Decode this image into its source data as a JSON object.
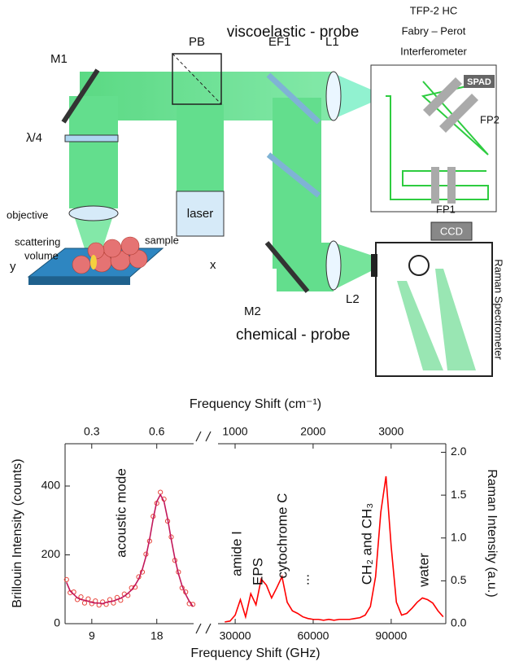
{
  "diagram": {
    "viscoelastic_probe": "viscoelastic - probe",
    "tfp_1": "TFP-2 HC",
    "tfp_2": "Fabry – Perot",
    "tfp_3": "Interferometer",
    "m1": "M1",
    "pb": "PB",
    "ef1": "EF1",
    "l1": "L1",
    "quarter_wave": "λ/4",
    "objective": "objective",
    "scattering_1": "scattering",
    "scattering_2": "volume",
    "sample": "sample",
    "laser": "laser",
    "spad": "SPAD",
    "fp2": "FP2",
    "fp1": "FP1",
    "ccd": "CCD",
    "raman_spectrometer": "Raman Spectrometer",
    "l2": "L2",
    "m2": "M2",
    "chemical_probe": "chemical - probe",
    "axis_y": "y",
    "axis_x": "x"
  },
  "chart_data": [
    {
      "type": "line",
      "xlabel": "Frequency Shift (GHz)",
      "x2label": "Frequency Shift (cm⁻¹)",
      "ylabel": "Brillouin Intensity (counts)",
      "xlim": [
        5.3,
        23.1
      ],
      "xticks": [
        9,
        18
      ],
      "x2lim": [
        0.177,
        0.77
      ],
      "x2ticks": [
        0.3,
        0.6
      ],
      "ylim": [
        0,
        523
      ],
      "yticks": [
        0,
        200,
        400
      ],
      "annotations": [
        "acoustic mode"
      ],
      "series": [
        {
          "marker": "circle",
          "color": "#e8463c",
          "x": [
            5.5,
            6,
            6.5,
            7,
            7.5,
            8,
            8.5,
            9,
            9.5,
            10,
            10.5,
            11,
            11.5,
            12,
            12.5,
            13,
            13.5,
            14,
            14.5,
            15,
            15.5,
            16,
            16.5,
            17,
            17.5,
            18,
            18.5,
            19,
            19.5,
            20,
            20.5,
            21,
            21.5,
            22,
            22.5,
            23
          ],
          "values": [
            128,
            90,
            92,
            70,
            78,
            60,
            72,
            58,
            66,
            54,
            63,
            56,
            70,
            60,
            76,
            68,
            86,
            82,
            104,
            106,
            136,
            150,
            202,
            240,
            312,
            350,
            382,
            362,
            298,
            252,
            184,
            150,
            104,
            92,
            58,
            56
          ]
        },
        {
          "marker": "line",
          "color": "#c2185b",
          "x": [
            5.5,
            6,
            6.5,
            7,
            7.5,
            8,
            8.5,
            9,
            9.5,
            10,
            10.5,
            11,
            11.5,
            12,
            12.5,
            13,
            13.5,
            14,
            14.5,
            15,
            15.5,
            16,
            16.5,
            17,
            17.5,
            18,
            18.5,
            19,
            19.5,
            20,
            20.5,
            21,
            21.5,
            22,
            22.5,
            23
          ],
          "values": [
            120,
            95,
            85,
            75,
            70,
            68,
            65,
            62,
            60,
            60,
            58,
            62,
            64,
            66,
            70,
            74,
            80,
            88,
            98,
            112,
            130,
            158,
            195,
            245,
            305,
            355,
            375,
            355,
            305,
            245,
            190,
            145,
            110,
            85,
            65,
            50
          ]
        }
      ]
    },
    {
      "type": "line",
      "xlim": [
        23400,
        111000
      ],
      "xticks": [
        30000,
        60000,
        90000
      ],
      "x2lim": [
        781,
        3701
      ],
      "x2ticks": [
        1000,
        2000,
        3000
      ],
      "y2label": "Raman Intensity (a.u.)",
      "y2lim": [
        0,
        2.1
      ],
      "y2ticks": [
        {
          "value": 0,
          "label": "0.0"
        },
        {
          "value": 0.5,
          "label": "0.5"
        },
        {
          "value": 1,
          "label": "1.0"
        },
        {
          "value": 1.5,
          "label": "1.5"
        },
        {
          "value": 2,
          "label": "2.0"
        }
      ],
      "annotations": [
        "amide I",
        "EPS",
        "cytochrome C",
        "...",
        "CH₂ and CH₃",
        "water"
      ],
      "series": [
        {
          "marker": "line",
          "color": "#ff0000",
          "axis": "y2",
          "x": [
            26000,
            28000,
            30000,
            32000,
            34000,
            36000,
            38000,
            40000,
            42000,
            44000,
            46000,
            48000,
            50000,
            52000,
            54000,
            56000,
            58000,
            60000,
            62000,
            64000,
            66000,
            68000,
            70000,
            72000,
            74000,
            76000,
            78000,
            80000,
            82000,
            84000,
            86000,
            88000,
            90000,
            92000,
            94000,
            96000,
            98000,
            100000,
            102000,
            104000,
            106000,
            108000,
            110000
          ],
          "values": [
            0.02,
            0.03,
            0.1,
            0.28,
            0.08,
            0.35,
            0.22,
            0.52,
            0.45,
            0.3,
            0.42,
            0.55,
            0.25,
            0.15,
            0.12,
            0.08,
            0.06,
            0.05,
            0.05,
            0.04,
            0.05,
            0.04,
            0.05,
            0.05,
            0.05,
            0.06,
            0.07,
            0.1,
            0.2,
            0.55,
            1.3,
            1.72,
            0.9,
            0.25,
            0.1,
            0.12,
            0.18,
            0.25,
            0.3,
            0.28,
            0.24,
            0.15,
            0.08
          ]
        }
      ]
    }
  ]
}
